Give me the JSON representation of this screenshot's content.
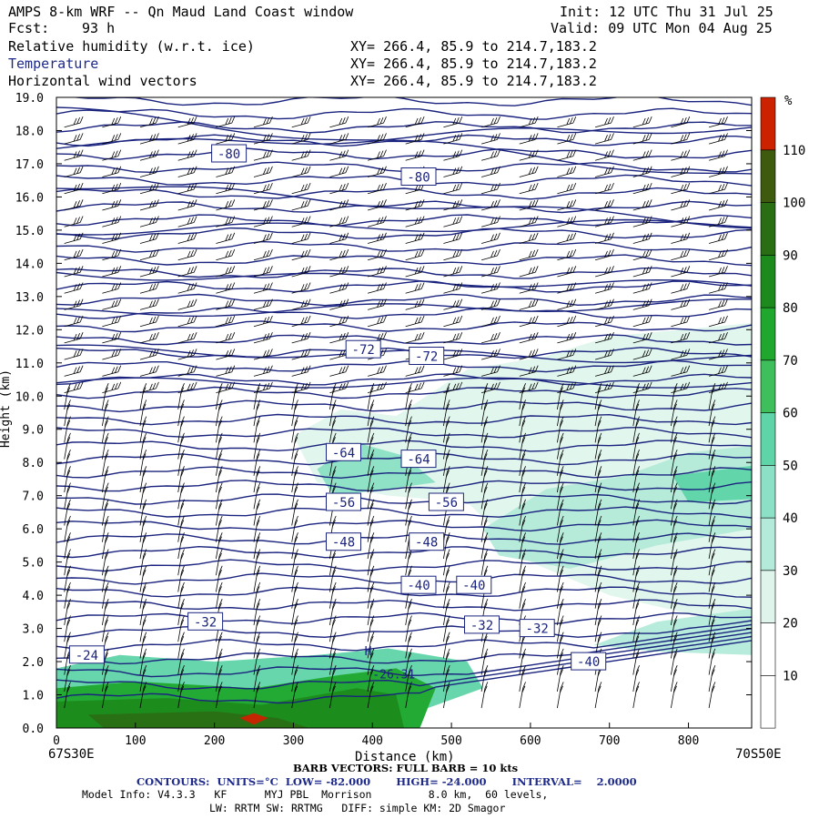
{
  "header": {
    "title": "AMPS 8-km WRF -- Qn Maud Land Coast window",
    "init": "Init: 12 UTC Thu 31 Jul 25",
    "fcst_label": "Fcst:",
    "fcst_value": "93 h",
    "valid": "Valid: 09 UTC Mon 04 Aug 25",
    "fields": [
      {
        "name": "Relative humidity (w.r.t. ice)",
        "xy": "XY= 266.4, 85.9 to 214.7,183.2"
      },
      {
        "name": "Temperature",
        "xy": "XY= 266.4, 85.9 to 214.7,183.2"
      },
      {
        "name": "Horizontal wind vectors",
        "xy": "XY= 266.4, 85.9 to 214.7,183.2"
      }
    ]
  },
  "colors": {
    "contour": "#1a237e",
    "rh_bands": [
      "#ffffff",
      "#ffffff",
      "#ffffff",
      "#dff5ec",
      "#b3ead9",
      "#8be0c5",
      "#5fd4a8",
      "#3fbf5c",
      "#20a82e",
      "#1c8a1c",
      "#2a6e14",
      "#3d5a0e",
      "#cc2200"
    ]
  },
  "chart_data": {
    "type": "cross-section",
    "xlabel": "Distance (km)",
    "ylabel": "Height (km)",
    "xlim": [
      0,
      880
    ],
    "ylim": [
      0,
      19
    ],
    "x_ticks": [
      0,
      100,
      200,
      300,
      400,
      500,
      600,
      700,
      800
    ],
    "y_ticks": [
      "0.0",
      "1.0",
      "2.0",
      "3.0",
      "4.0",
      "5.0",
      "6.0",
      "7.0",
      "8.0",
      "9.0",
      "10.0",
      "11.0",
      "12.0",
      "13.0",
      "14.0",
      "15.0",
      "16.0",
      "17.0",
      "18.0",
      "19.0"
    ],
    "x_start_label": "67S30E",
    "x_end_label": "70S50E",
    "colorbar": {
      "unit": "%",
      "ticks": [
        "10",
        "20",
        "30",
        "40",
        "50",
        "60",
        "70",
        "80",
        "90",
        "100",
        "110"
      ]
    },
    "contour_labels": [
      {
        "text": "-80",
        "x": 200,
        "y": 17.3
      },
      {
        "text": "-80",
        "x": 440,
        "y": 16.6
      },
      {
        "text": "-72",
        "x": 370,
        "y": 11.4
      },
      {
        "text": "-72",
        "x": 450,
        "y": 11.2
      },
      {
        "text": "-64",
        "x": 345,
        "y": 8.3
      },
      {
        "text": "-64",
        "x": 440,
        "y": 8.1
      },
      {
        "text": "-56",
        "x": 345,
        "y": 6.8
      },
      {
        "text": "-56",
        "x": 475,
        "y": 6.8
      },
      {
        "text": "-48",
        "x": 345,
        "y": 5.6
      },
      {
        "text": "-48",
        "x": 450,
        "y": 5.6
      },
      {
        "text": "-40",
        "x": 440,
        "y": 4.3
      },
      {
        "text": "-40",
        "x": 510,
        "y": 4.3
      },
      {
        "text": "-32",
        "x": 170,
        "y": 3.2
      },
      {
        "text": "-32",
        "x": 520,
        "y": 3.1
      },
      {
        "text": "-32",
        "x": 590,
        "y": 3.0
      },
      {
        "text": "-24",
        "x": 20,
        "y": 2.2
      },
      {
        "text": "-40",
        "x": 655,
        "y": 2.0
      }
    ],
    "extrema_labels": [
      {
        "text": "H",
        "x": 390,
        "y": 2.2
      },
      {
        "text": "-26.31",
        "x": 400,
        "y": 1.5
      }
    ]
  },
  "footer": {
    "barb": "BARB VECTORS: FULL BARB = 10 kts",
    "contours": "CONTOURS:  UNITS=°C  LOW= -82.000       HIGH= -24.000       INTERVAL=    2.0000",
    "model_info": "Model Info: V4.3.3   KF      MYJ PBL  Morrison         8.0 km,  60 levels,",
    "model_info2": "LW: RRTM SW: RRTMG   DIFF: simple KM: 2D Smagor"
  }
}
